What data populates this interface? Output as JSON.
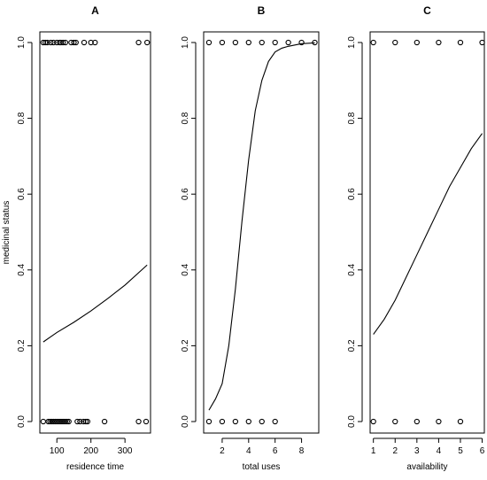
{
  "chart_data": [
    {
      "panel_label": "A",
      "type": "scatter",
      "title": "A",
      "xlabel": "residence time",
      "ylabel": "medicinal status",
      "xlim": [
        50,
        375
      ],
      "ylim": [
        0,
        1
      ],
      "xticks": [
        100,
        200,
        300
      ],
      "yticks": [
        0.0,
        0.2,
        0.4,
        0.6,
        0.8,
        1.0
      ],
      "points": [
        {
          "x": 60,
          "y": 1
        },
        {
          "x": 66,
          "y": 1
        },
        {
          "x": 72,
          "y": 1
        },
        {
          "x": 82,
          "y": 1
        },
        {
          "x": 90,
          "y": 1
        },
        {
          "x": 100,
          "y": 1
        },
        {
          "x": 108,
          "y": 1
        },
        {
          "x": 112,
          "y": 1
        },
        {
          "x": 118,
          "y": 1
        },
        {
          "x": 125,
          "y": 1
        },
        {
          "x": 142,
          "y": 1
        },
        {
          "x": 150,
          "y": 1
        },
        {
          "x": 156,
          "y": 1
        },
        {
          "x": 180,
          "y": 1
        },
        {
          "x": 200,
          "y": 1
        },
        {
          "x": 212,
          "y": 1
        },
        {
          "x": 340,
          "y": 1
        },
        {
          "x": 365,
          "y": 1
        },
        {
          "x": 60,
          "y": 0
        },
        {
          "x": 75,
          "y": 0
        },
        {
          "x": 80,
          "y": 0
        },
        {
          "x": 85,
          "y": 0
        },
        {
          "x": 90,
          "y": 0
        },
        {
          "x": 95,
          "y": 0
        },
        {
          "x": 100,
          "y": 0
        },
        {
          "x": 105,
          "y": 0
        },
        {
          "x": 110,
          "y": 0
        },
        {
          "x": 115,
          "y": 0
        },
        {
          "x": 120,
          "y": 0
        },
        {
          "x": 125,
          "y": 0
        },
        {
          "x": 130,
          "y": 0
        },
        {
          "x": 135,
          "y": 0
        },
        {
          "x": 160,
          "y": 0
        },
        {
          "x": 168,
          "y": 0
        },
        {
          "x": 178,
          "y": 0
        },
        {
          "x": 185,
          "y": 0
        },
        {
          "x": 190,
          "y": 0
        },
        {
          "x": 240,
          "y": 0
        },
        {
          "x": 340,
          "y": 0
        },
        {
          "x": 362,
          "y": 0
        }
      ],
      "fit_curve": {
        "x": [
          60,
          100,
          150,
          200,
          250,
          300,
          365
        ],
        "y": [
          0.21,
          0.235,
          0.262,
          0.292,
          0.325,
          0.36,
          0.413
        ]
      }
    },
    {
      "panel_label": "B",
      "type": "scatter",
      "title": "B",
      "xlabel": "total uses",
      "ylabel": "",
      "xlim": [
        0.6,
        9.3
      ],
      "ylim": [
        0,
        1
      ],
      "xticks": [
        2,
        4,
        6,
        8
      ],
      "yticks": [
        0.0,
        0.2,
        0.4,
        0.6,
        0.8,
        1.0
      ],
      "points": [
        {
          "x": 1,
          "y": 1
        },
        {
          "x": 2,
          "y": 1
        },
        {
          "x": 3,
          "y": 1
        },
        {
          "x": 4,
          "y": 1
        },
        {
          "x": 5,
          "y": 1
        },
        {
          "x": 6,
          "y": 1
        },
        {
          "x": 7,
          "y": 1
        },
        {
          "x": 8,
          "y": 1
        },
        {
          "x": 9,
          "y": 1
        },
        {
          "x": 1,
          "y": 0
        },
        {
          "x": 2,
          "y": 0
        },
        {
          "x": 3,
          "y": 0
        },
        {
          "x": 4,
          "y": 0
        },
        {
          "x": 5,
          "y": 0
        },
        {
          "x": 6,
          "y": 0
        }
      ],
      "fit_curve": {
        "x": [
          1,
          1.5,
          2,
          2.5,
          3,
          3.5,
          4,
          4.5,
          5,
          5.5,
          6,
          6.5,
          7,
          8,
          9
        ],
        "y": [
          0.03,
          0.06,
          0.1,
          0.2,
          0.35,
          0.53,
          0.69,
          0.82,
          0.9,
          0.95,
          0.975,
          0.985,
          0.99,
          0.997,
          0.999
        ]
      }
    },
    {
      "panel_label": "C",
      "type": "scatter",
      "title": "C",
      "xlabel": "availability",
      "ylabel": "",
      "xlim": [
        0.85,
        6.1
      ],
      "ylim": [
        0,
        1
      ],
      "xticks": [
        1,
        2,
        3,
        4,
        5,
        6
      ],
      "yticks": [
        0.0,
        0.2,
        0.4,
        0.6,
        0.8,
        1.0
      ],
      "points": [
        {
          "x": 1,
          "y": 1
        },
        {
          "x": 2,
          "y": 1
        },
        {
          "x": 3,
          "y": 1
        },
        {
          "x": 4,
          "y": 1
        },
        {
          "x": 5,
          "y": 1
        },
        {
          "x": 6,
          "y": 1
        },
        {
          "x": 1,
          "y": 0
        },
        {
          "x": 2,
          "y": 0
        },
        {
          "x": 3,
          "y": 0
        },
        {
          "x": 4,
          "y": 0
        },
        {
          "x": 5,
          "y": 0
        }
      ],
      "fit_curve": {
        "x": [
          1,
          1.5,
          2,
          2.5,
          3,
          3.5,
          4,
          4.5,
          5,
          5.5,
          6
        ],
        "y": [
          0.23,
          0.27,
          0.32,
          0.38,
          0.44,
          0.5,
          0.56,
          0.62,
          0.67,
          0.72,
          0.76
        ]
      }
    }
  ]
}
